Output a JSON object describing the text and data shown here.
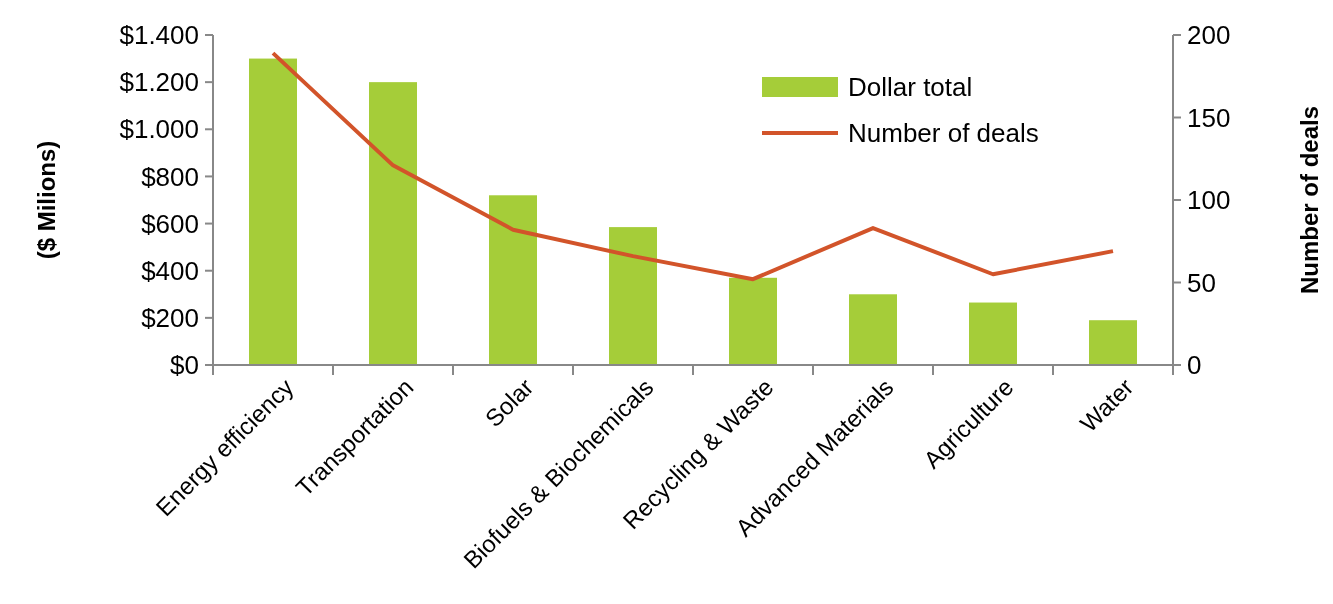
{
  "chart_data": {
    "type": "bar",
    "categories": [
      "Energy efficiency",
      "Transportation",
      "Solar",
      "Biofuels & Biochemicals",
      "Recycling & Waste",
      "Advanced Materials",
      "Agriculture",
      "Water"
    ],
    "series": [
      {
        "name": "Dollar total",
        "color": "#a5cd39",
        "values": [
          1300,
          1200,
          720,
          585,
          370,
          300,
          265,
          190
        ]
      },
      {
        "name": "Number of deals",
        "type": "line",
        "axis": "y2",
        "color": "#d2542a",
        "values": [
          189,
          121,
          82,
          66,
          52,
          83,
          55,
          69
        ]
      }
    ],
    "ylabel": "($ Milions)",
    "y2label": "Number of deals",
    "ylim": [
      0,
      1400
    ],
    "yticks": [
      {
        "value": 0,
        "label": "$0"
      },
      {
        "value": 200,
        "label": "$200"
      },
      {
        "value": 400,
        "label": "$400"
      },
      {
        "value": 600,
        "label": "$600"
      },
      {
        "value": 800,
        "label": "$800"
      },
      {
        "value": 1000,
        "label": "$1.000"
      },
      {
        "value": 1200,
        "label": "$1.200"
      },
      {
        "value": 1400,
        "label": "$1.400"
      }
    ],
    "y2lim": [
      0,
      200
    ],
    "y2ticks": [
      0,
      50,
      100,
      150,
      200
    ],
    "legend": "top right",
    "grid": false,
    "marker": "none",
    "line_style": "solid"
  }
}
